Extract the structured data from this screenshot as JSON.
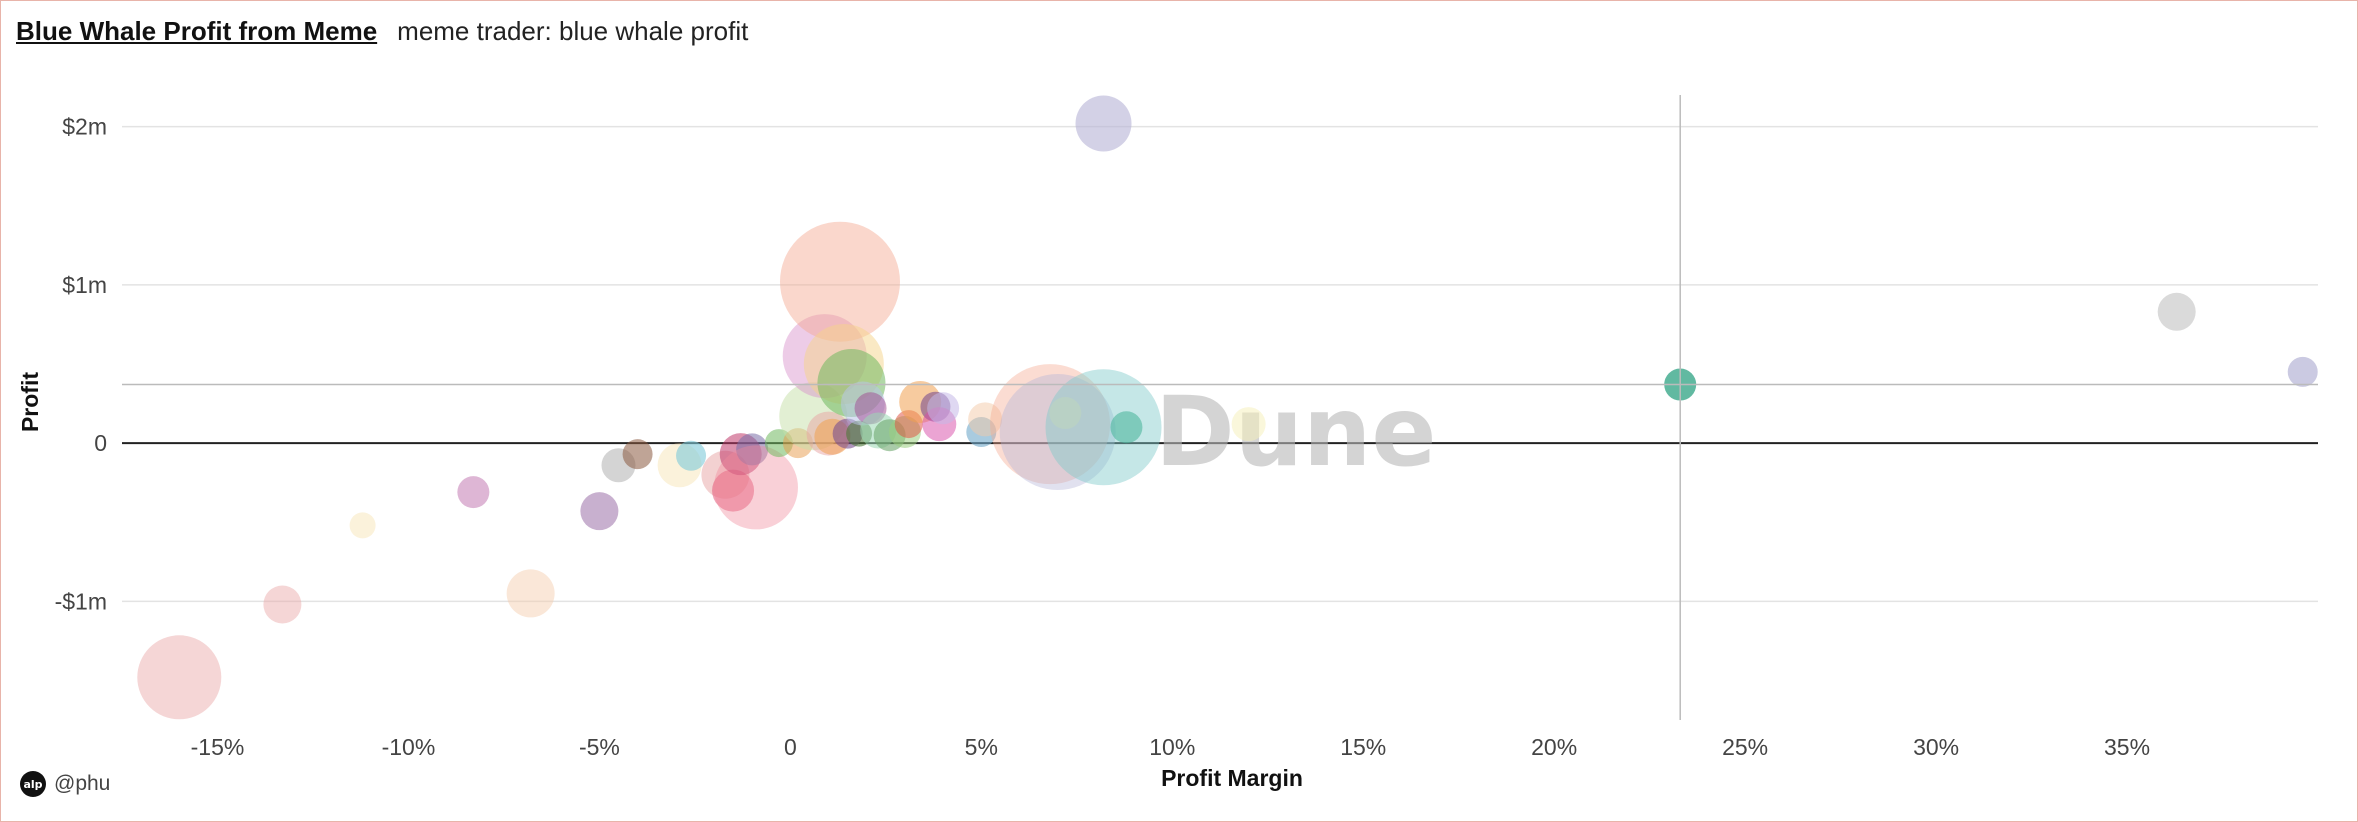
{
  "header": {
    "title": "Blue Whale Profit from Meme",
    "subtitle": "meme trader: blue whale profit"
  },
  "footer": {
    "author": "@phu",
    "avatar_text": "alp"
  },
  "watermark": "Dune",
  "chart_data": {
    "type": "scatter",
    "xlabel": "Profit Margin",
    "ylabel": "Profit",
    "xlim": [
      -17.5,
      40
    ],
    "ylim": [
      -1.75,
      2.2
    ],
    "x_ticks": [
      {
        "value": -15,
        "label": "-15%"
      },
      {
        "value": -10,
        "label": "-10%"
      },
      {
        "value": -5,
        "label": "-5%"
      },
      {
        "value": 0,
        "label": "0"
      },
      {
        "value": 5,
        "label": "5%"
      },
      {
        "value": 10,
        "label": "10%"
      },
      {
        "value": 15,
        "label": "15%"
      },
      {
        "value": 20,
        "label": "20%"
      },
      {
        "value": 25,
        "label": "25%"
      },
      {
        "value": 30,
        "label": "30%"
      },
      {
        "value": 35,
        "label": "35%"
      }
    ],
    "y_ticks": [
      {
        "value": 2,
        "label": "$2m"
      },
      {
        "value": 1,
        "label": "$1m"
      },
      {
        "value": 0,
        "label": "0"
      },
      {
        "value": -1,
        "label": "-$1m"
      }
    ],
    "crosshair": {
      "x": 23.3,
      "y": 0.37
    },
    "points": [
      {
        "x": -16.0,
        "y": -1.48,
        "size": 42,
        "color": "#e8a3a3",
        "opacity": 0.45
      },
      {
        "x": -13.3,
        "y": -1.02,
        "size": 19,
        "color": "#e8a3a3",
        "opacity": 0.45
      },
      {
        "x": -11.2,
        "y": -0.52,
        "size": 13,
        "color": "#f6e3b0",
        "opacity": 0.45
      },
      {
        "x": -8.3,
        "y": -0.31,
        "size": 16,
        "color": "#c27ab3",
        "opacity": 0.55
      },
      {
        "x": -6.8,
        "y": -0.95,
        "size": 24,
        "color": "#f4c9a8",
        "opacity": 0.45
      },
      {
        "x": -5.0,
        "y": -0.43,
        "size": 19,
        "color": "#9b6fa8",
        "opacity": 0.55
      },
      {
        "x": -4.5,
        "y": -0.14,
        "size": 17,
        "color": "#aaaaaa",
        "opacity": 0.5
      },
      {
        "x": -4.0,
        "y": -0.07,
        "size": 15,
        "color": "#8b5a40",
        "opacity": 0.55
      },
      {
        "x": -2.9,
        "y": -0.14,
        "size": 22,
        "color": "#f6e3b0",
        "opacity": 0.45
      },
      {
        "x": -2.6,
        "y": -0.08,
        "size": 15,
        "color": "#7fc9d9",
        "opacity": 0.6
      },
      {
        "x": -1.7,
        "y": -0.2,
        "size": 24,
        "color": "#e8a3a3",
        "opacity": 0.5
      },
      {
        "x": -1.5,
        "y": -0.3,
        "size": 21,
        "color": "#e35a7a",
        "opacity": 0.55
      },
      {
        "x": -1.3,
        "y": -0.07,
        "size": 21,
        "color": "#c0396a",
        "opacity": 0.55
      },
      {
        "x": -1.0,
        "y": -0.04,
        "size": 16,
        "color": "#7a6da8",
        "opacity": 0.55
      },
      {
        "x": -0.9,
        "y": -0.28,
        "size": 42,
        "color": "#f18a9a",
        "opacity": 0.4
      },
      {
        "x": -0.3,
        "y": 0.0,
        "size": 14,
        "color": "#6fb85f",
        "opacity": 0.55
      },
      {
        "x": 0.2,
        "y": 0.0,
        "size": 15,
        "color": "#e89a4a",
        "opacity": 0.5
      },
      {
        "x": 0.6,
        "y": 0.17,
        "size": 34,
        "color": "#c5e0a8",
        "opacity": 0.5
      },
      {
        "x": 0.9,
        "y": 0.55,
        "size": 42,
        "color": "#d88fc9",
        "opacity": 0.45
      },
      {
        "x": 1.0,
        "y": 0.06,
        "size": 22,
        "color": "#e8a3a3",
        "opacity": 0.5
      },
      {
        "x": 1.1,
        "y": 0.04,
        "size": 18,
        "color": "#f0a050",
        "opacity": 0.55
      },
      {
        "x": 1.3,
        "y": 1.02,
        "size": 60,
        "color": "#f4a78f",
        "opacity": 0.45
      },
      {
        "x": 1.4,
        "y": 0.5,
        "size": 40,
        "color": "#f6d38a",
        "opacity": 0.5
      },
      {
        "x": 1.5,
        "y": 0.06,
        "size": 15,
        "color": "#7a4f8f",
        "opacity": 0.6
      },
      {
        "x": 1.6,
        "y": 0.38,
        "size": 34,
        "color": "#6fb85f",
        "opacity": 0.55
      },
      {
        "x": 1.8,
        "y": 0.06,
        "size": 13,
        "color": "#4f7a3a",
        "opacity": 0.6
      },
      {
        "x": 1.9,
        "y": 0.25,
        "size": 22,
        "color": "#b8c5e8",
        "opacity": 0.55
      },
      {
        "x": 2.1,
        "y": 0.22,
        "size": 16,
        "color": "#a04a8f",
        "opacity": 0.5
      },
      {
        "x": 2.3,
        "y": 0.08,
        "size": 18,
        "color": "#9ad9b5",
        "opacity": 0.55
      },
      {
        "x": 2.6,
        "y": 0.05,
        "size": 16,
        "color": "#6fa86f",
        "opacity": 0.6
      },
      {
        "x": 3.0,
        "y": 0.07,
        "size": 16,
        "color": "#9bcf7f",
        "opacity": 0.55
      },
      {
        "x": 3.1,
        "y": 0.12,
        "size": 14,
        "color": "#e04a3a",
        "opacity": 0.5
      },
      {
        "x": 3.4,
        "y": 0.26,
        "size": 21,
        "color": "#f0a050",
        "opacity": 0.55
      },
      {
        "x": 3.8,
        "y": 0.23,
        "size": 15,
        "color": "#7a4f8f",
        "opacity": 0.6
      },
      {
        "x": 3.9,
        "y": 0.12,
        "size": 17,
        "color": "#d84aa8",
        "opacity": 0.5
      },
      {
        "x": 4.0,
        "y": 0.22,
        "size": 16,
        "color": "#c5b8e8",
        "opacity": 0.55
      },
      {
        "x": 5.0,
        "y": 0.07,
        "size": 15,
        "color": "#6fa8c9",
        "opacity": 0.6
      },
      {
        "x": 5.1,
        "y": 0.15,
        "size": 17,
        "color": "#f4c9a8",
        "opacity": 0.5
      },
      {
        "x": 6.8,
        "y": 0.12,
        "size": 60,
        "color": "#f4a78f",
        "opacity": 0.4
      },
      {
        "x": 7.0,
        "y": 0.07,
        "size": 58,
        "color": "#b5b3d6",
        "opacity": 0.4
      },
      {
        "x": 7.2,
        "y": 0.19,
        "size": 16,
        "color": "#f6e3b0",
        "opacity": 0.5
      },
      {
        "x": 8.2,
        "y": 2.02,
        "size": 28,
        "color": "#b5b3d6",
        "opacity": 0.6
      },
      {
        "x": 8.2,
        "y": 0.1,
        "size": 58,
        "color": "#7fc9c9",
        "opacity": 0.45
      },
      {
        "x": 8.8,
        "y": 0.1,
        "size": 16,
        "color": "#4fb89f",
        "opacity": 0.6
      },
      {
        "x": 12.0,
        "y": 0.12,
        "size": 17,
        "color": "#f6f0b8",
        "opacity": 0.5
      },
      {
        "x": 23.3,
        "y": 0.37,
        "size": 16,
        "color": "#3aa88a",
        "opacity": 0.8
      },
      {
        "x": 36.3,
        "y": 0.83,
        "size": 19,
        "color": "#bbbbbb",
        "opacity": 0.55
      },
      {
        "x": 39.6,
        "y": 0.45,
        "size": 15,
        "color": "#b5b3d6",
        "opacity": 0.7
      }
    ]
  }
}
